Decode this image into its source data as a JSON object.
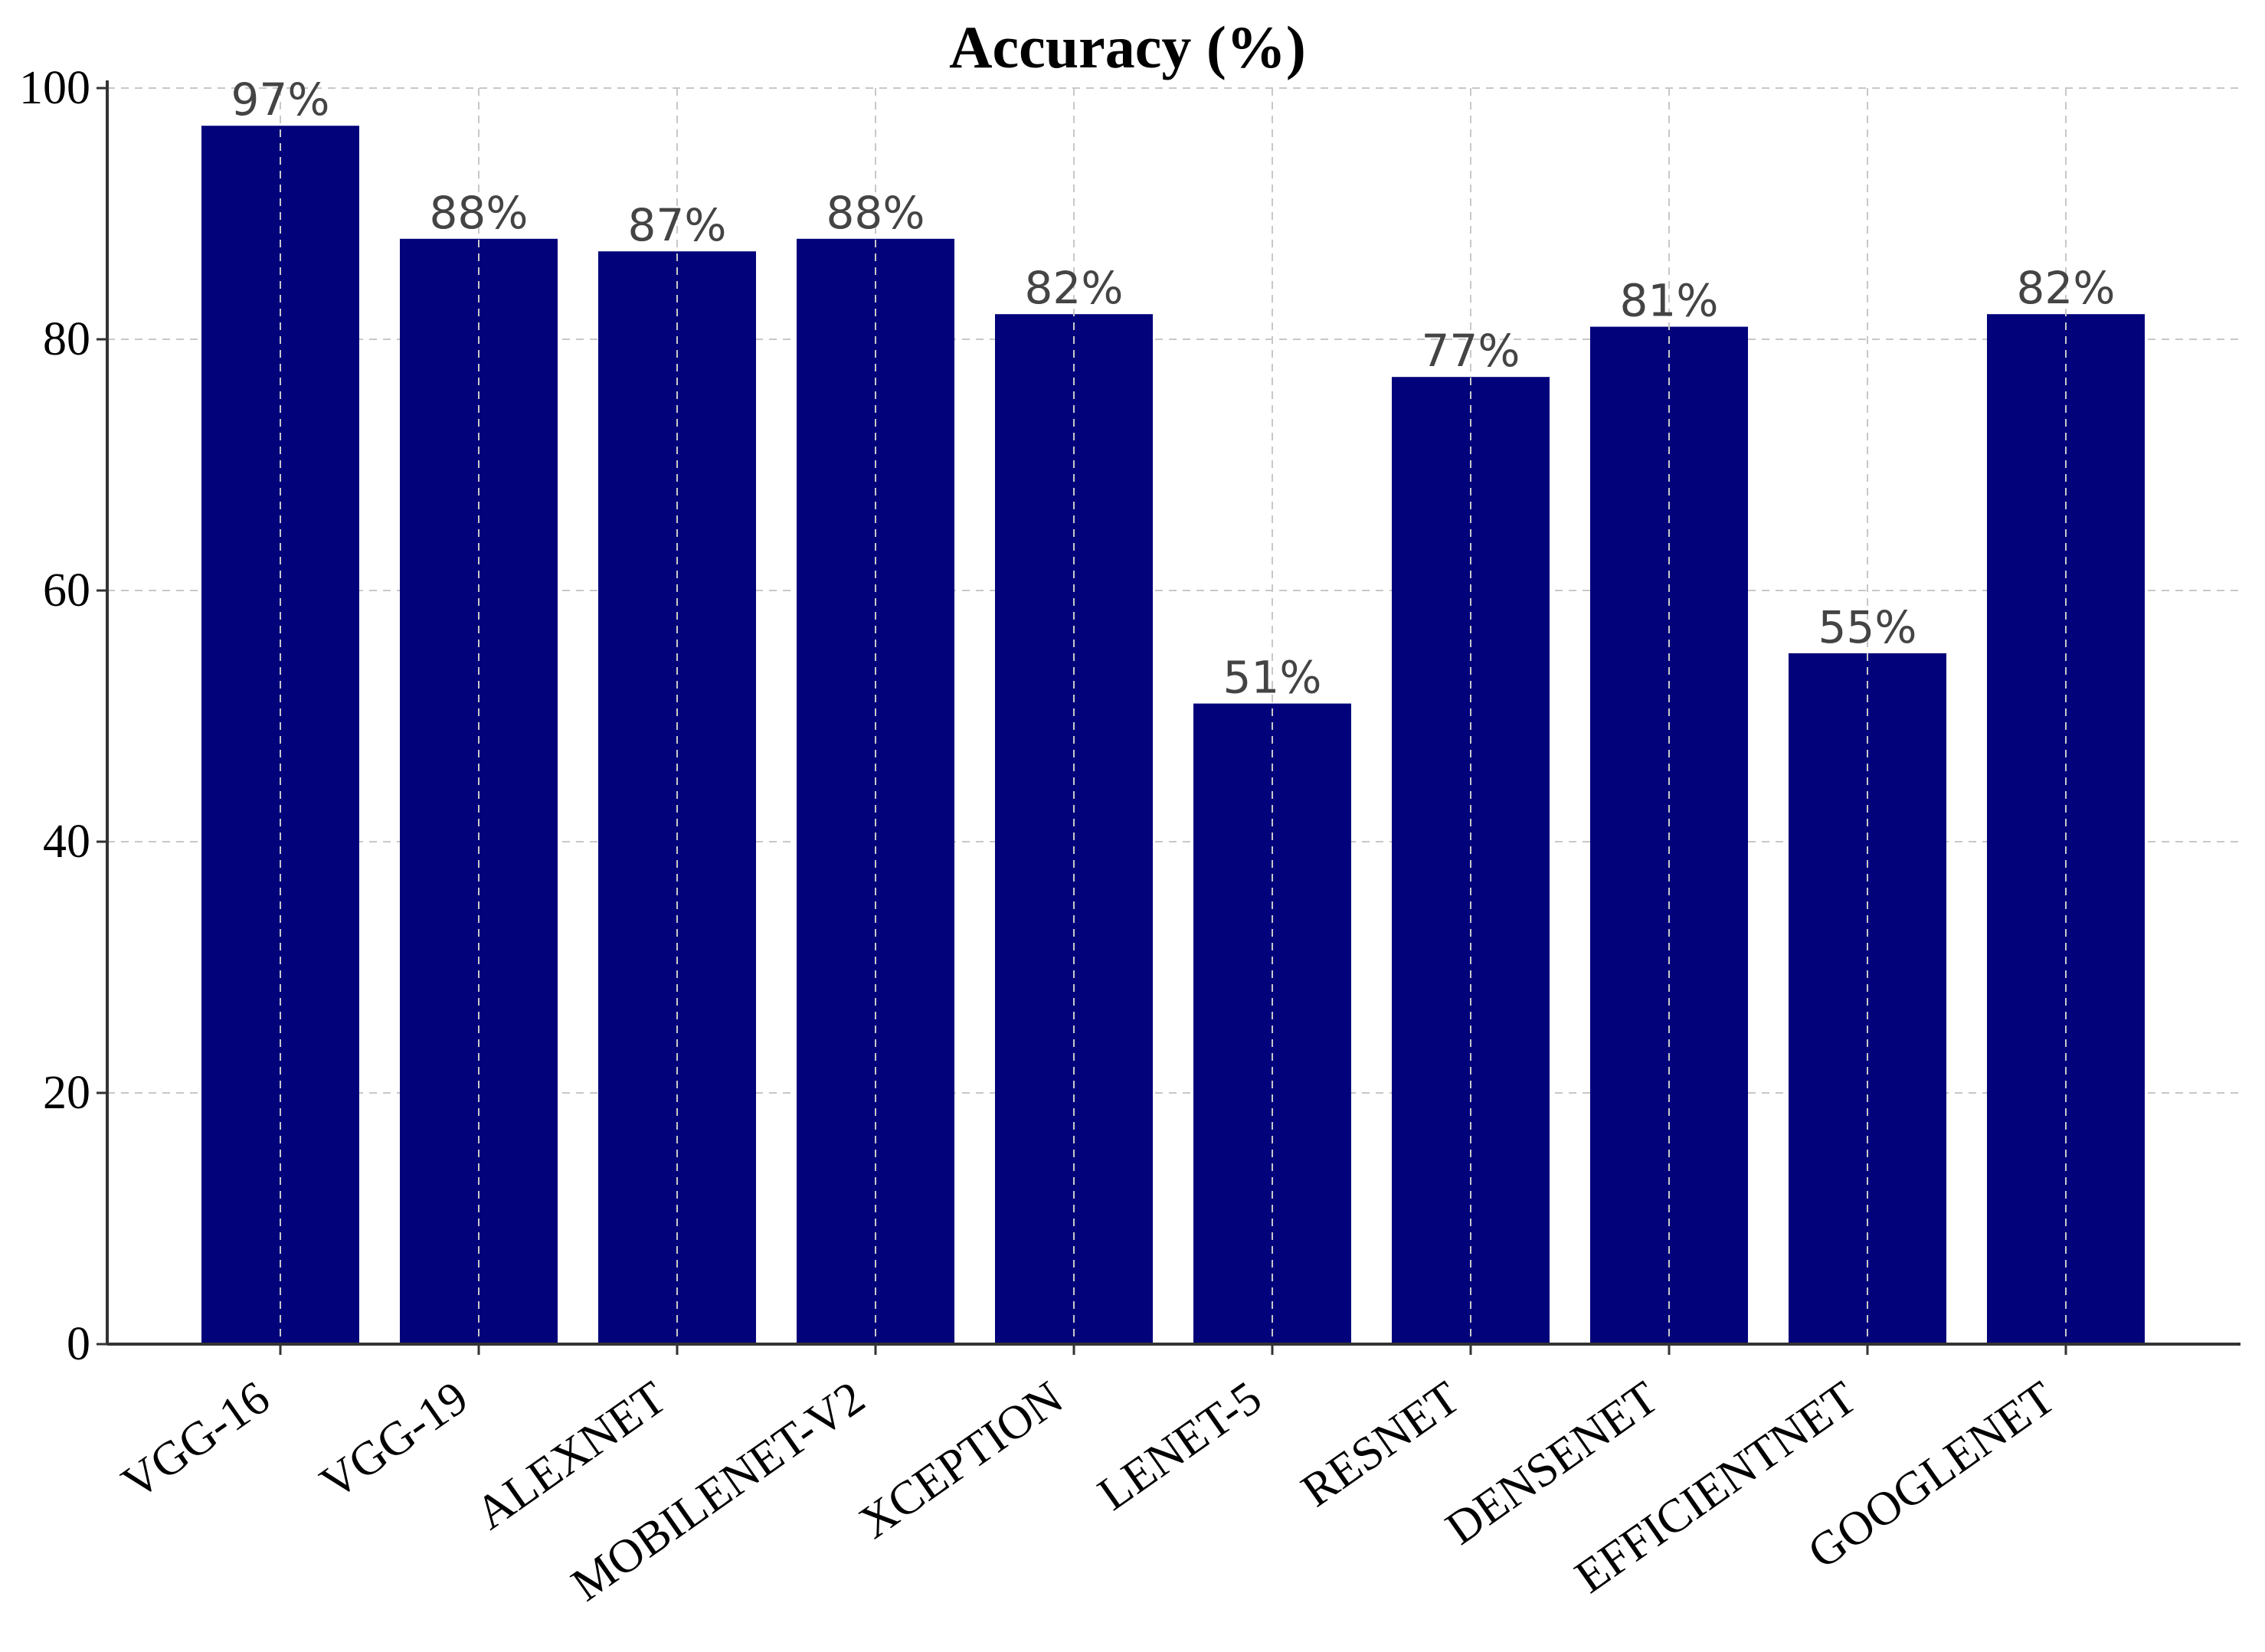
{
  "chart_data": {
    "type": "bar",
    "title": "Accuracy (%)",
    "xlabel": "",
    "ylabel": "",
    "categories": [
      "VGG-16",
      "VGG-19",
      "ALEXNET",
      "MOBILENET-V2",
      "XCEPTION",
      "LENET-5",
      "RESNET",
      "DENSENET",
      "EFFICIENTNET",
      "GOOGLENET"
    ],
    "values": [
      97,
      88,
      87,
      88,
      82,
      51,
      77,
      81,
      55,
      82
    ],
    "data_labels": [
      "97%",
      "88%",
      "87%",
      "88%",
      "82%",
      "51%",
      "77%",
      "81%",
      "55%",
      "82%"
    ],
    "yticks": [
      0,
      20,
      40,
      60,
      80,
      100
    ],
    "ytick_labels": [
      "0",
      "20",
      "40",
      "60",
      "80",
      "100"
    ],
    "ylim": [
      0,
      100
    ],
    "grid": true,
    "legend": "none",
    "bar_color": "#02027a",
    "x_label_rotation_deg": -35
  }
}
